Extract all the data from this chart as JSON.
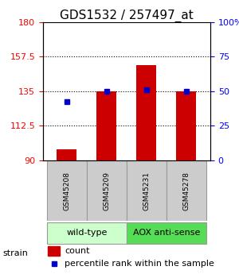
{
  "title": "GDS1532 / 257497_at",
  "samples": [
    "GSM45208",
    "GSM45209",
    "GSM45231",
    "GSM45278"
  ],
  "bar_base": 90,
  "bar_tops": [
    97,
    135,
    152,
    135
  ],
  "percentile_vals": [
    128,
    135,
    136,
    135
  ],
  "ylim_left": [
    90,
    180
  ],
  "ylim_right": [
    0,
    100
  ],
  "yticks_left": [
    90,
    112.5,
    135,
    157.5,
    180
  ],
  "yticks_right": [
    0,
    25,
    50,
    75,
    100
  ],
  "ytick_labels_left": [
    "90",
    "112.5",
    "135",
    "157.5",
    "180"
  ],
  "ytick_labels_right": [
    "0",
    "25",
    "50",
    "75",
    "100%"
  ],
  "bar_color": "#cc0000",
  "percentile_color": "#0000cc",
  "strains": [
    {
      "label": "wild-type",
      "samples": [
        0,
        1
      ],
      "color": "#ccffcc"
    },
    {
      "label": "AOX anti-sense",
      "samples": [
        2,
        3
      ],
      "color": "#55dd55"
    }
  ],
  "strain_label": "strain",
  "legend_count": "count",
  "legend_percentile": "percentile rank within the sample",
  "sample_box_color": "#cccccc",
  "title_fontsize": 11,
  "axis_fontsize": 8,
  "label_fontsize": 8,
  "strain_fontsize": 8,
  "bar_width": 0.5
}
